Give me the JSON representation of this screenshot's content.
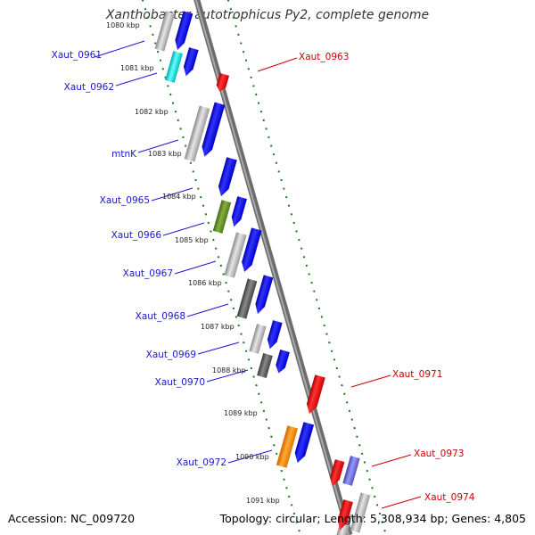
{
  "title": "Xanthobacter autotrophicus Py2, complete genome",
  "footer": {
    "accession": "Accession: NC_009720",
    "stats": "Topology: circular; Length: 5,308,934 bp; Genes: 4,805"
  },
  "colors": {
    "forward_cds": "#0000ee",
    "reverse_cds": "#ee0000",
    "backbone": "#888888",
    "ticks": "#1a7a1a",
    "label_forward": "#1a1acc",
    "label_reverse": "#cc0000"
  },
  "kbp_ticks": [
    "1080 kbp",
    "1081 kbp",
    "1082 kbp",
    "1083 kbp",
    "1084 kbp",
    "1085 kbp",
    "1086 kbp",
    "1087 kbp",
    "1088 kbp",
    "1089 kbp",
    "1090 kbp",
    "1091 kbp"
  ],
  "genes_forward": [
    "Xaut_0961",
    "Xaut_0962",
    "mtnK",
    "Xaut_0965",
    "Xaut_0966",
    "Xaut_0967",
    "Xaut_0968",
    "Xaut_0969",
    "Xaut_0970",
    "Xaut_0972"
  ],
  "genes_reverse": [
    "Xaut_0963",
    "Xaut_0971",
    "Xaut_0973",
    "Xaut_0974"
  ]
}
